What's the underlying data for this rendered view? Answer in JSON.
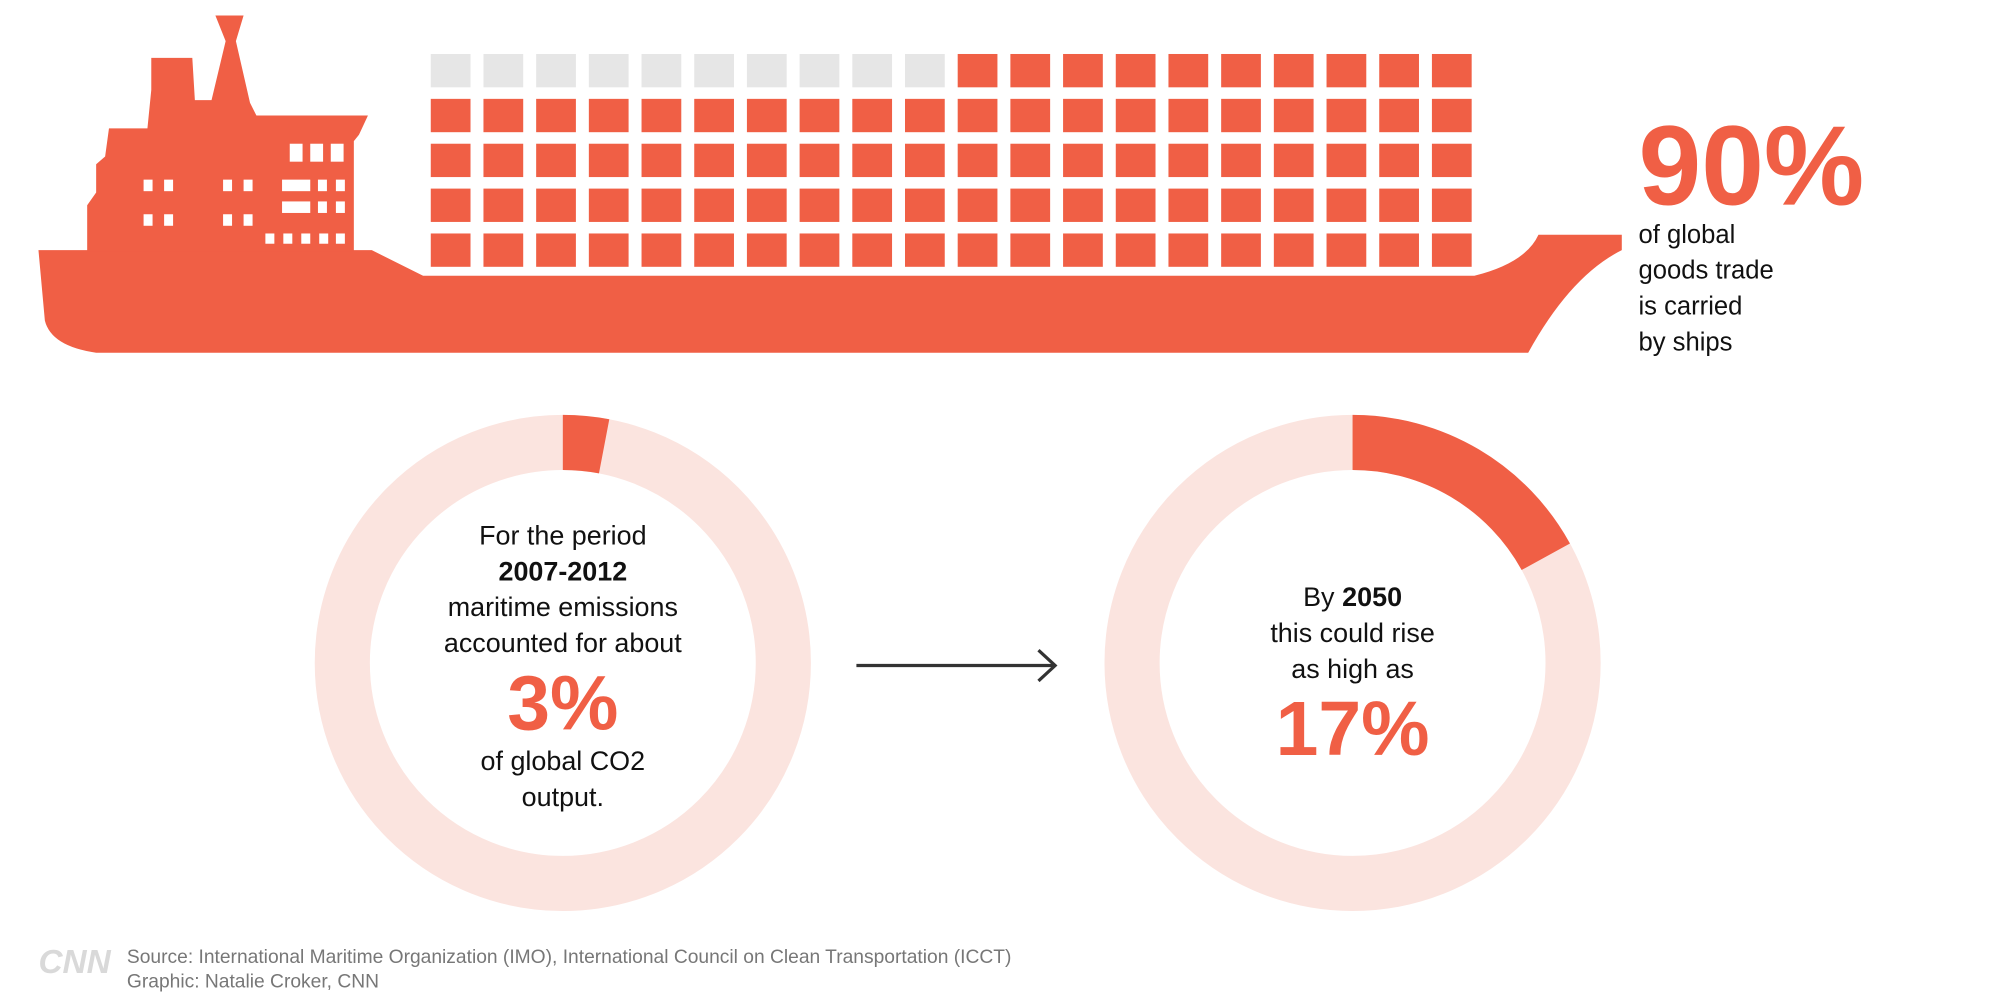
{
  "ship_stat": {
    "value": 90,
    "label": "90%",
    "caption": [
      "of global",
      "goods trade",
      "is carried",
      "by ships"
    ]
  },
  "donuts": [
    {
      "lines_before": [
        "For the period",
        "2007-2012",
        "maritime emissions",
        "accounted for about"
      ],
      "value": 3,
      "label": "3%",
      "lines_after": [
        "of global CO2",
        "output."
      ]
    },
    {
      "prefix": "By",
      "year": "2050",
      "lines_before": [
        "this could rise",
        "as high as"
      ],
      "value": 17,
      "label": "17%"
    }
  ],
  "logo": "CNN",
  "source": "Source: International Maritime Organization (IMO), International Council on Clean Transportation (ICCT)",
  "credit": "Graphic: Natalie Croker, CNN"
}
